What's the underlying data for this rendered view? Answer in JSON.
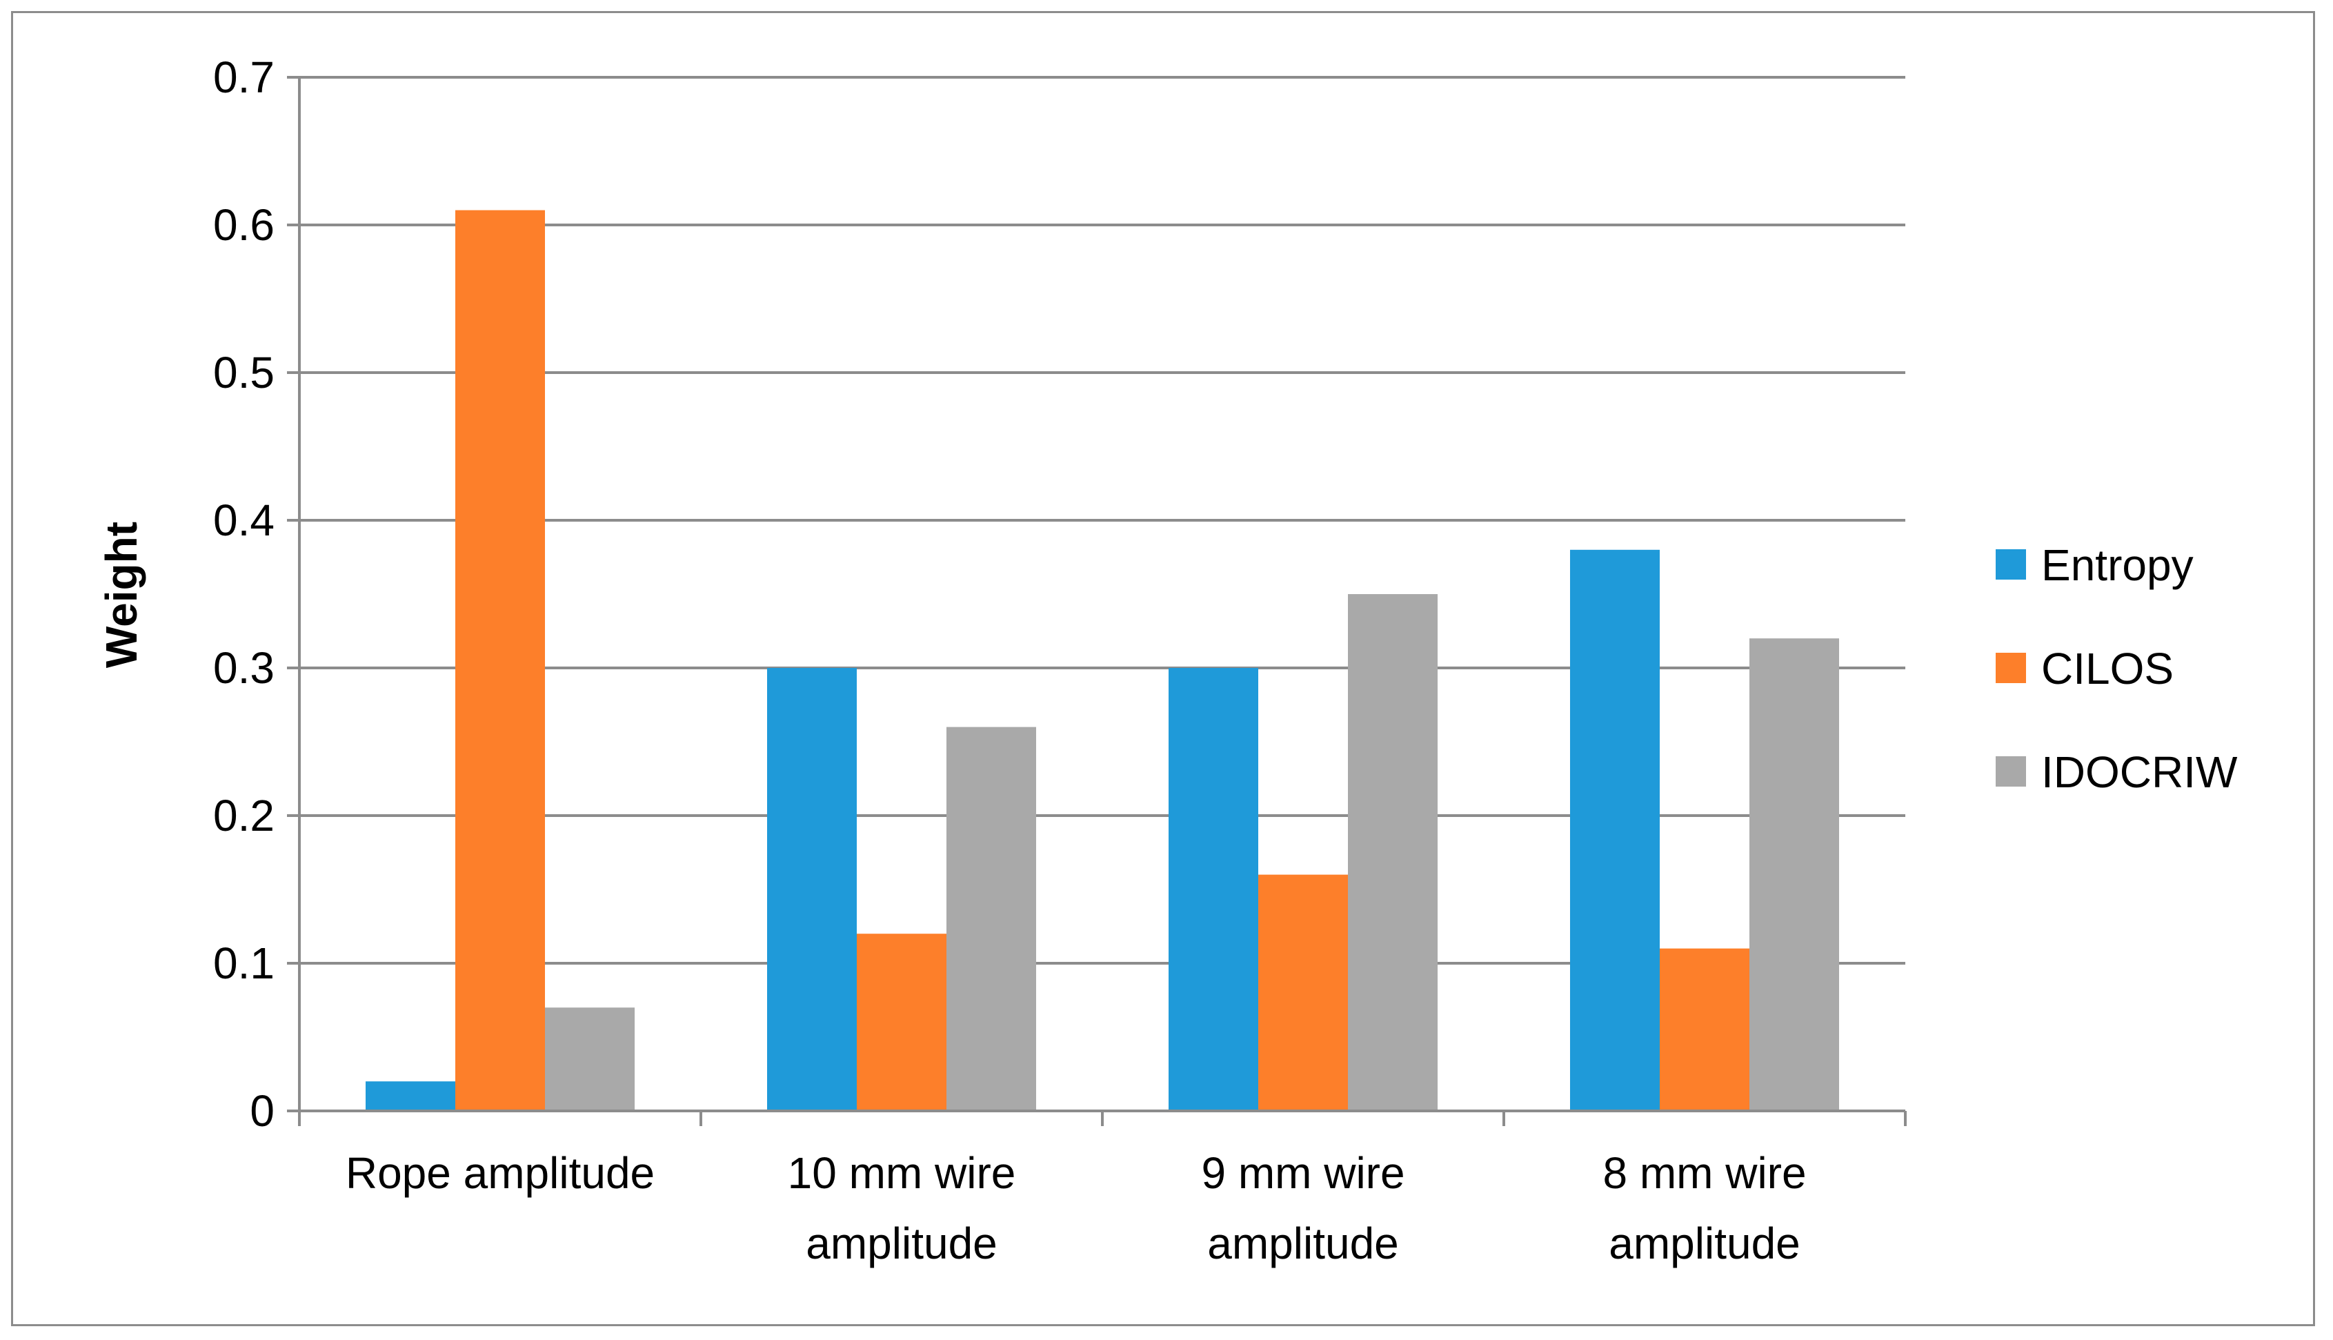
{
  "chart_data": {
    "type": "bar",
    "title": "",
    "xlabel": "",
    "ylabel": "Weight",
    "ylim": [
      0,
      0.7
    ],
    "yticks": [
      "0",
      "0.1",
      "0.2",
      "0.3",
      "0.4",
      "0.5",
      "0.6",
      "0.7"
    ],
    "grid": true,
    "legend_position": "right",
    "categories": [
      [
        "Rope amplitude"
      ],
      [
        "10 mm wire",
        "amplitude"
      ],
      [
        "9 mm wire",
        "amplitude"
      ],
      [
        "8 mm wire",
        "amplitude"
      ]
    ],
    "series": [
      {
        "name": "Entropy",
        "color": "#1f9ad9",
        "values": [
          0.02,
          0.3,
          0.3,
          0.38
        ]
      },
      {
        "name": "CILOS",
        "color": "#fd7f2a",
        "values": [
          0.61,
          0.12,
          0.16,
          0.11
        ]
      },
      {
        "name": "IDOCRIW",
        "color": "#a9a9a9",
        "values": [
          0.07,
          0.26,
          0.35,
          0.32
        ]
      }
    ],
    "colors": {
      "grid": "#8c8c8c",
      "axis": "#8c8c8c",
      "border": "#8c8c8c"
    }
  }
}
